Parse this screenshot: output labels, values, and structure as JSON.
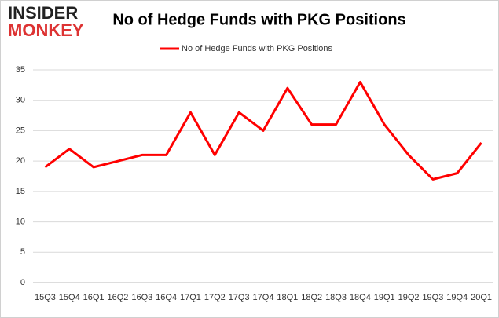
{
  "logo": {
    "line1": "INSIDER",
    "line2": "MONKEY"
  },
  "chart_data": {
    "type": "line",
    "title": "No of Hedge Funds with PKG Positions",
    "categories": [
      "15Q3",
      "15Q4",
      "16Q1",
      "16Q2",
      "16Q3",
      "16Q4",
      "17Q1",
      "17Q2",
      "17Q3",
      "17Q4",
      "18Q1",
      "18Q2",
      "18Q3",
      "18Q4",
      "19Q1",
      "19Q2",
      "19Q3",
      "19Q4",
      "20Q1"
    ],
    "series": [
      {
        "name": "No of Hedge Funds with PKG Positions",
        "color": "#ff0000",
        "values": [
          19,
          22,
          19,
          20,
          21,
          21,
          28,
          21,
          28,
          25,
          32,
          26,
          26,
          33,
          26,
          21,
          17,
          18,
          23
        ]
      }
    ],
    "ylim": [
      0,
      35
    ],
    "yticks": [
      0,
      5,
      10,
      15,
      20,
      25,
      30,
      35
    ],
    "grid": true,
    "legend": "top"
  }
}
